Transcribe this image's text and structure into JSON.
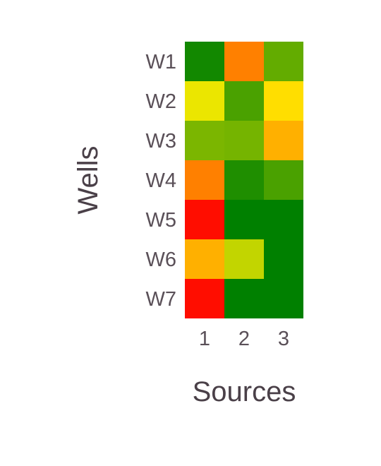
{
  "chart_data": {
    "type": "heatmap",
    "title": "",
    "xlabel": "Sources",
    "ylabel": "Wells",
    "x_categories": [
      "1",
      "2",
      "3"
    ],
    "y_categories": [
      "W1",
      "W2",
      "W3",
      "W4",
      "W5",
      "W6",
      "W7"
    ],
    "values": [
      [
        0.03,
        0.8,
        0.16
      ],
      [
        0.45,
        0.12,
        0.55
      ],
      [
        0.2,
        0.19,
        0.7
      ],
      [
        0.8,
        0.05,
        0.12
      ],
      [
        0.98,
        0.0,
        0.0
      ],
      [
        0.7,
        0.35,
        0.0
      ],
      [
        0.98,
        0.0,
        0.0
      ]
    ],
    "value_range": [
      0,
      1
    ],
    "colorscale": [
      "#008000",
      "#9ac400",
      "#ffee00",
      "#ffa000",
      "#ff0000"
    ],
    "grid": false,
    "legend": "none"
  }
}
